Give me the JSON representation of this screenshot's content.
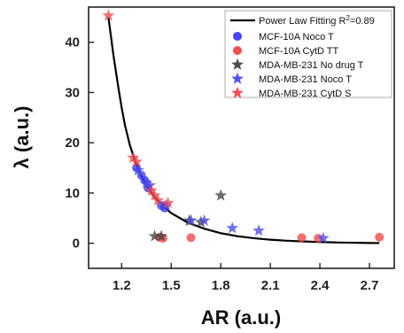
{
  "chart_data": {
    "type": "scatter",
    "xlabel": "AR (a.u.)",
    "ylabel": "λ (a.u.)",
    "xlim": [
      1.0,
      2.85
    ],
    "ylim": [
      -5,
      47
    ],
    "xticks": [
      1.2,
      1.5,
      1.8,
      2.1,
      2.4,
      2.7
    ],
    "xtick_labels": [
      "1.2",
      "1.5",
      "1.8",
      "2.1",
      "2.4",
      "2.7"
    ],
    "yticks": [
      0,
      10,
      20,
      30,
      40
    ],
    "ytick_labels": [
      "0",
      "10",
      "20",
      "30",
      "40"
    ],
    "legend_position": "top-right",
    "fit": {
      "name": "Power Law Fitting R",
      "r2_exponent": "2",
      "r2_value": "=0.89",
      "color": "#000000",
      "points": [
        [
          1.12,
          45.0
        ],
        [
          1.15,
          37.5
        ],
        [
          1.18,
          31.0
        ],
        [
          1.2,
          27.0
        ],
        [
          1.22,
          23.5
        ],
        [
          1.25,
          19.5
        ],
        [
          1.28,
          16.5
        ],
        [
          1.31,
          14.0
        ],
        [
          1.35,
          11.5
        ],
        [
          1.4,
          9.2
        ],
        [
          1.45,
          7.4
        ],
        [
          1.5,
          6.0
        ],
        [
          1.6,
          4.1
        ],
        [
          1.7,
          2.9
        ],
        [
          1.8,
          2.0
        ],
        [
          1.9,
          1.4
        ],
        [
          2.0,
          1.0
        ],
        [
          2.1,
          0.7
        ],
        [
          2.2,
          0.5
        ],
        [
          2.3,
          0.35
        ],
        [
          2.4,
          0.25
        ],
        [
          2.5,
          0.15
        ],
        [
          2.6,
          0.1
        ],
        [
          2.7,
          0.05
        ],
        [
          2.76,
          0.03
        ]
      ]
    },
    "series": [
      {
        "name": "MCF-10A Noco T",
        "marker": "circle",
        "color": "#3b3bf0",
        "points": [
          [
            1.29,
            15.0
          ],
          [
            1.32,
            13.5
          ],
          [
            1.34,
            12.5
          ],
          [
            1.36,
            11.0
          ],
          [
            1.44,
            7.5
          ],
          [
            1.46,
            7.0
          ]
        ]
      },
      {
        "name": "MCF-10A CytD TT",
        "marker": "circle",
        "color": "#f0454a",
        "points": [
          [
            1.43,
            1.2
          ],
          [
            1.45,
            1.0
          ],
          [
            1.62,
            1.1
          ],
          [
            2.29,
            1.1
          ],
          [
            2.39,
            1.0
          ],
          [
            2.76,
            1.2
          ]
        ]
      },
      {
        "name": "MDA-MB-231 No drug T",
        "marker": "star",
        "color": "#444444",
        "points": [
          [
            1.4,
            1.4
          ],
          [
            1.44,
            1.4
          ],
          [
            1.61,
            4.5
          ],
          [
            1.68,
            4.2
          ],
          [
            1.8,
            9.5
          ]
        ]
      },
      {
        "name": "MDA-MB-231 Noco T",
        "marker": "star",
        "color": "#4a4ae8",
        "points": [
          [
            1.3,
            14.5
          ],
          [
            1.35,
            12.0
          ],
          [
            1.37,
            11.5
          ],
          [
            1.47,
            7.5
          ],
          [
            1.62,
            4.5
          ],
          [
            1.7,
            4.5
          ],
          [
            1.87,
            3.0
          ],
          [
            2.03,
            2.5
          ],
          [
            2.42,
            1.0
          ]
        ]
      },
      {
        "name": "MDA-MB-231 CytD S",
        "marker": "star",
        "color": "#f0454a",
        "points": [
          [
            1.12,
            45.3
          ],
          [
            1.27,
            17.0
          ],
          [
            1.29,
            16.2
          ],
          [
            1.38,
            10.5
          ],
          [
            1.4,
            9.5
          ],
          [
            1.42,
            8.5
          ],
          [
            1.48,
            8.0
          ]
        ]
      }
    ]
  }
}
